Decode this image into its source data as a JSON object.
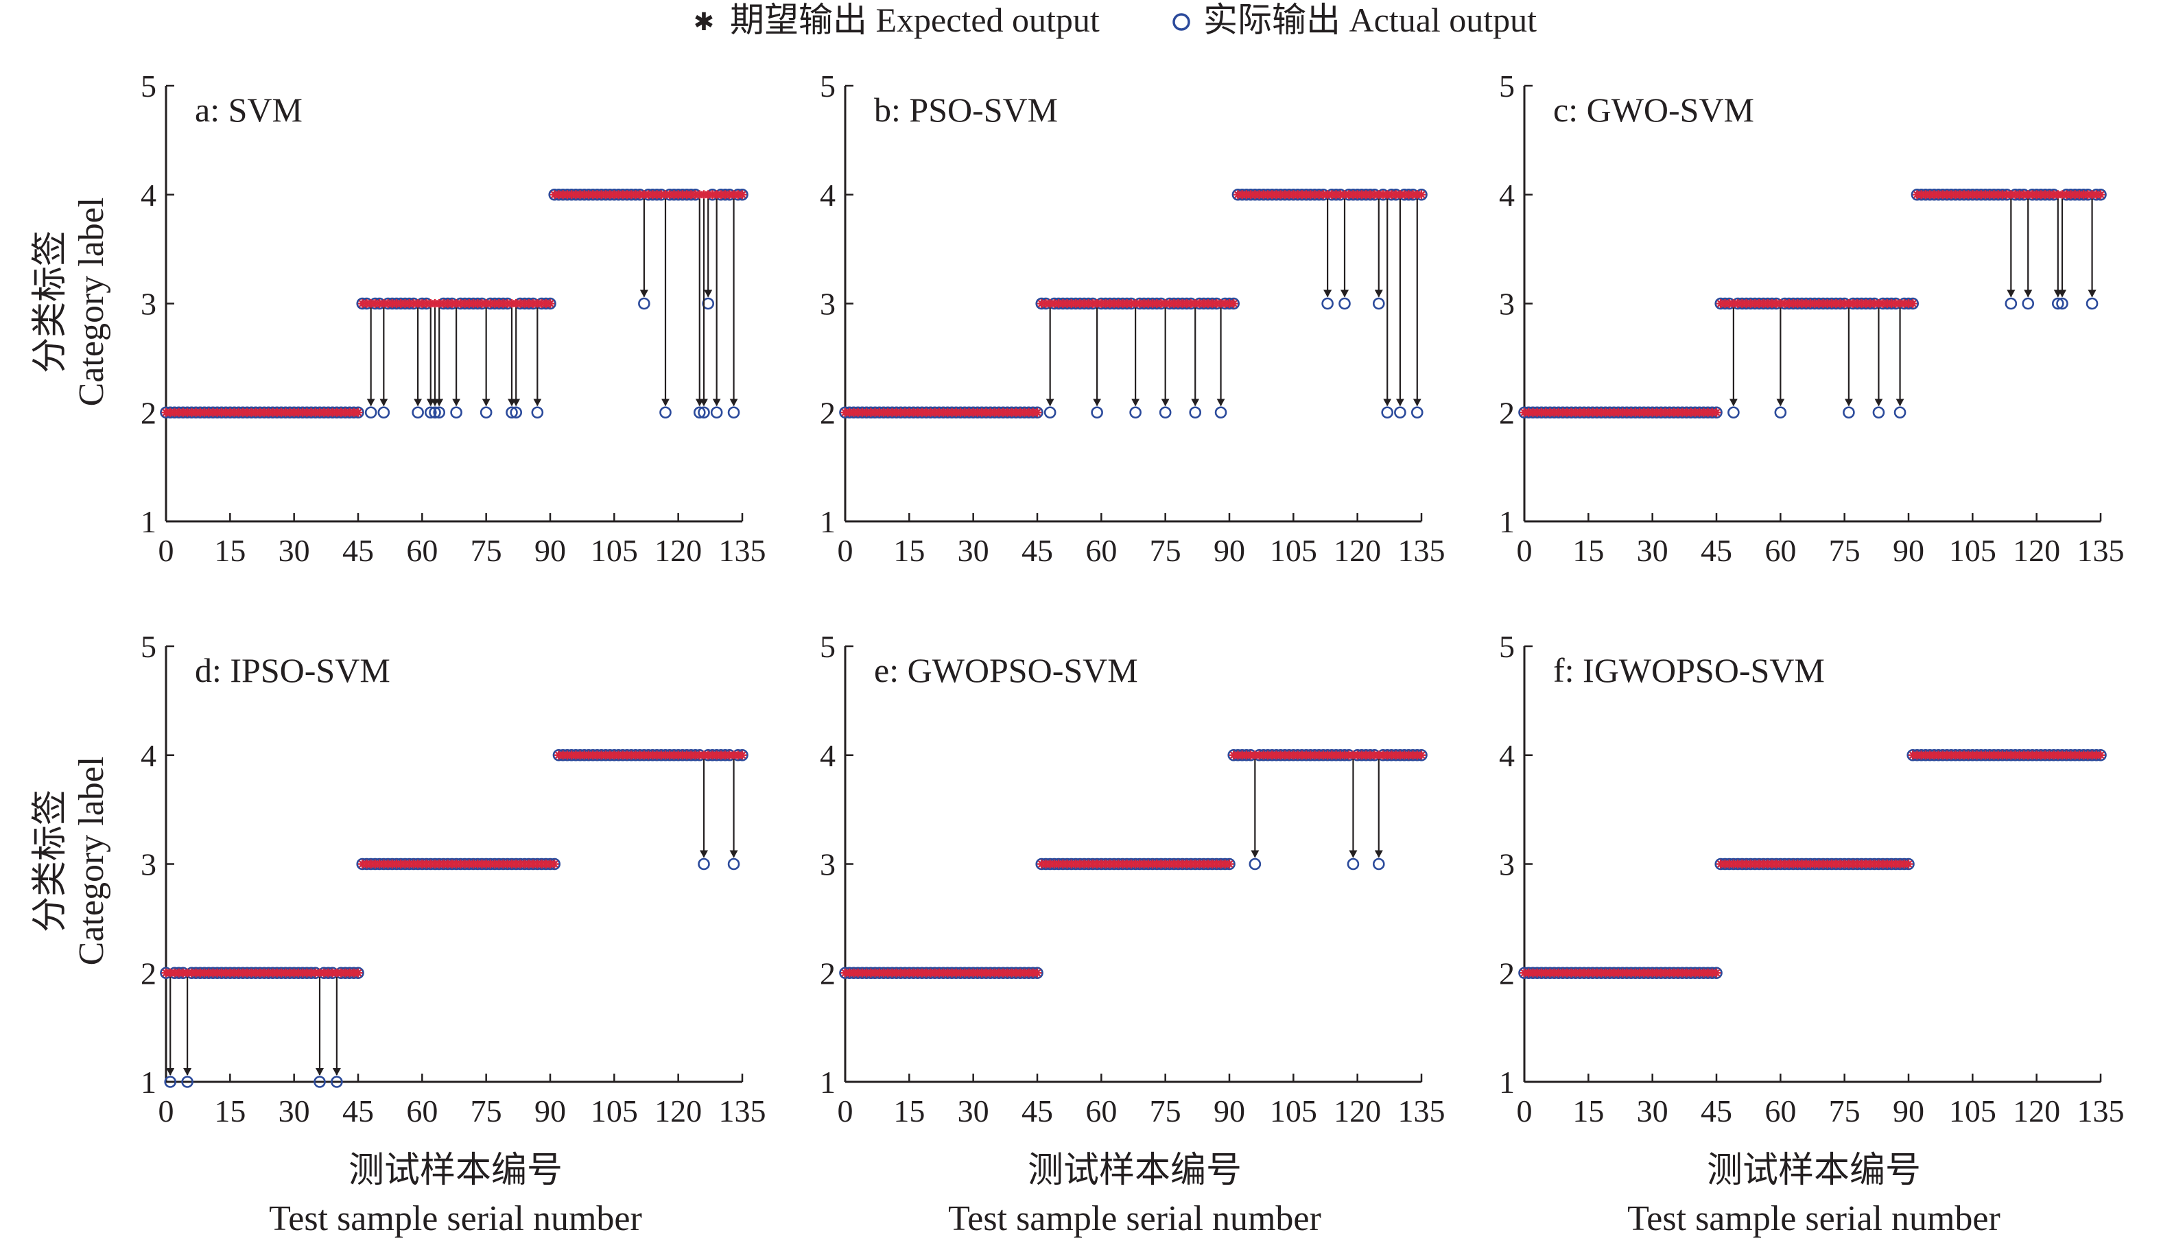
{
  "legend": {
    "expected_label": "期望输出 Expected output",
    "actual_label": "实际输出 Actual output"
  },
  "axes": {
    "ylabel_cn": "分类标签",
    "ylabel_en": "Category label",
    "xlabel_cn": "测试样本编号",
    "xlabel_en": "Test sample serial number",
    "xticks": [
      0,
      15,
      30,
      45,
      60,
      75,
      90,
      105,
      120,
      135
    ],
    "yticks": [
      1,
      2,
      3,
      4,
      5
    ]
  },
  "colors": {
    "expected": "#d7263d",
    "actual": "#2b4a9b",
    "axis": "#231f20"
  },
  "chart_data": [
    {
      "type": "scatter",
      "title": "a: SVM",
      "xlim": [
        0,
        135
      ],
      "ylim": [
        1,
        5
      ],
      "class_ranges": [
        [
          2,
          0,
          45
        ],
        [
          3,
          46,
          90
        ],
        [
          4,
          91,
          135
        ]
      ],
      "misclassified": [
        [
          48,
          3,
          2
        ],
        [
          51,
          3,
          2
        ],
        [
          59,
          3,
          2
        ],
        [
          62,
          3,
          2
        ],
        [
          63,
          3,
          2
        ],
        [
          64,
          3,
          2
        ],
        [
          68,
          3,
          2
        ],
        [
          75,
          3,
          2
        ],
        [
          81,
          3,
          2
        ],
        [
          82,
          3,
          2
        ],
        [
          87,
          3,
          2
        ],
        [
          112,
          4,
          3
        ],
        [
          117,
          4,
          2
        ],
        [
          125,
          4,
          2
        ],
        [
          126,
          4,
          2
        ],
        [
          127,
          4,
          3
        ],
        [
          129,
          4,
          2
        ],
        [
          133,
          4,
          2
        ]
      ]
    },
    {
      "type": "scatter",
      "title": "b: PSO-SVM",
      "xlim": [
        0,
        135
      ],
      "ylim": [
        1,
        5
      ],
      "class_ranges": [
        [
          2,
          0,
          45
        ],
        [
          3,
          46,
          91
        ],
        [
          4,
          92,
          135
        ]
      ],
      "misclassified": [
        [
          48,
          3,
          2
        ],
        [
          59,
          3,
          2
        ],
        [
          68,
          3,
          2
        ],
        [
          75,
          3,
          2
        ],
        [
          82,
          3,
          2
        ],
        [
          88,
          3,
          2
        ],
        [
          113,
          4,
          3
        ],
        [
          117,
          4,
          3
        ],
        [
          125,
          4,
          3
        ],
        [
          127,
          4,
          2
        ],
        [
          130,
          4,
          2
        ],
        [
          134,
          4,
          2
        ]
      ]
    },
    {
      "type": "scatter",
      "title": "c: GWO-SVM",
      "xlim": [
        0,
        135
      ],
      "ylim": [
        1,
        5
      ],
      "class_ranges": [
        [
          2,
          0,
          45
        ],
        [
          3,
          46,
          91
        ],
        [
          4,
          92,
          135
        ]
      ],
      "misclassified": [
        [
          49,
          3,
          2
        ],
        [
          60,
          3,
          2
        ],
        [
          76,
          3,
          2
        ],
        [
          83,
          3,
          2
        ],
        [
          88,
          3,
          2
        ],
        [
          114,
          4,
          3
        ],
        [
          118,
          4,
          3
        ],
        [
          125,
          4,
          3
        ],
        [
          126,
          4,
          3
        ],
        [
          133,
          4,
          3
        ]
      ]
    },
    {
      "type": "scatter",
      "title": "d: IPSO-SVM",
      "xlim": [
        0,
        135
      ],
      "ylim": [
        1,
        5
      ],
      "class_ranges": [
        [
          2,
          0,
          46
        ],
        [
          3,
          46,
          91
        ],
        [
          4,
          92,
          135
        ]
      ],
      "misclassified": [
        [
          1,
          2,
          1
        ],
        [
          5,
          2,
          1
        ],
        [
          36,
          2,
          1
        ],
        [
          40,
          2,
          1
        ],
        [
          126,
          4,
          3
        ],
        [
          133,
          4,
          3
        ]
      ]
    },
    {
      "type": "scatter",
      "title": "e: GWOPSO-SVM",
      "xlim": [
        0,
        135
      ],
      "ylim": [
        1,
        5
      ],
      "class_ranges": [
        [
          2,
          0,
          45
        ],
        [
          3,
          46,
          90
        ],
        [
          4,
          91,
          135
        ]
      ],
      "misclassified": [
        [
          96,
          4,
          3
        ],
        [
          119,
          4,
          3
        ],
        [
          125,
          4,
          3
        ]
      ]
    },
    {
      "type": "scatter",
      "title": "f: IGWOPSO-SVM",
      "xlim": [
        0,
        135
      ],
      "ylim": [
        1,
        5
      ],
      "class_ranges": [
        [
          2,
          0,
          45
        ],
        [
          3,
          46,
          90
        ],
        [
          4,
          91,
          135
        ]
      ],
      "misclassified": []
    }
  ]
}
